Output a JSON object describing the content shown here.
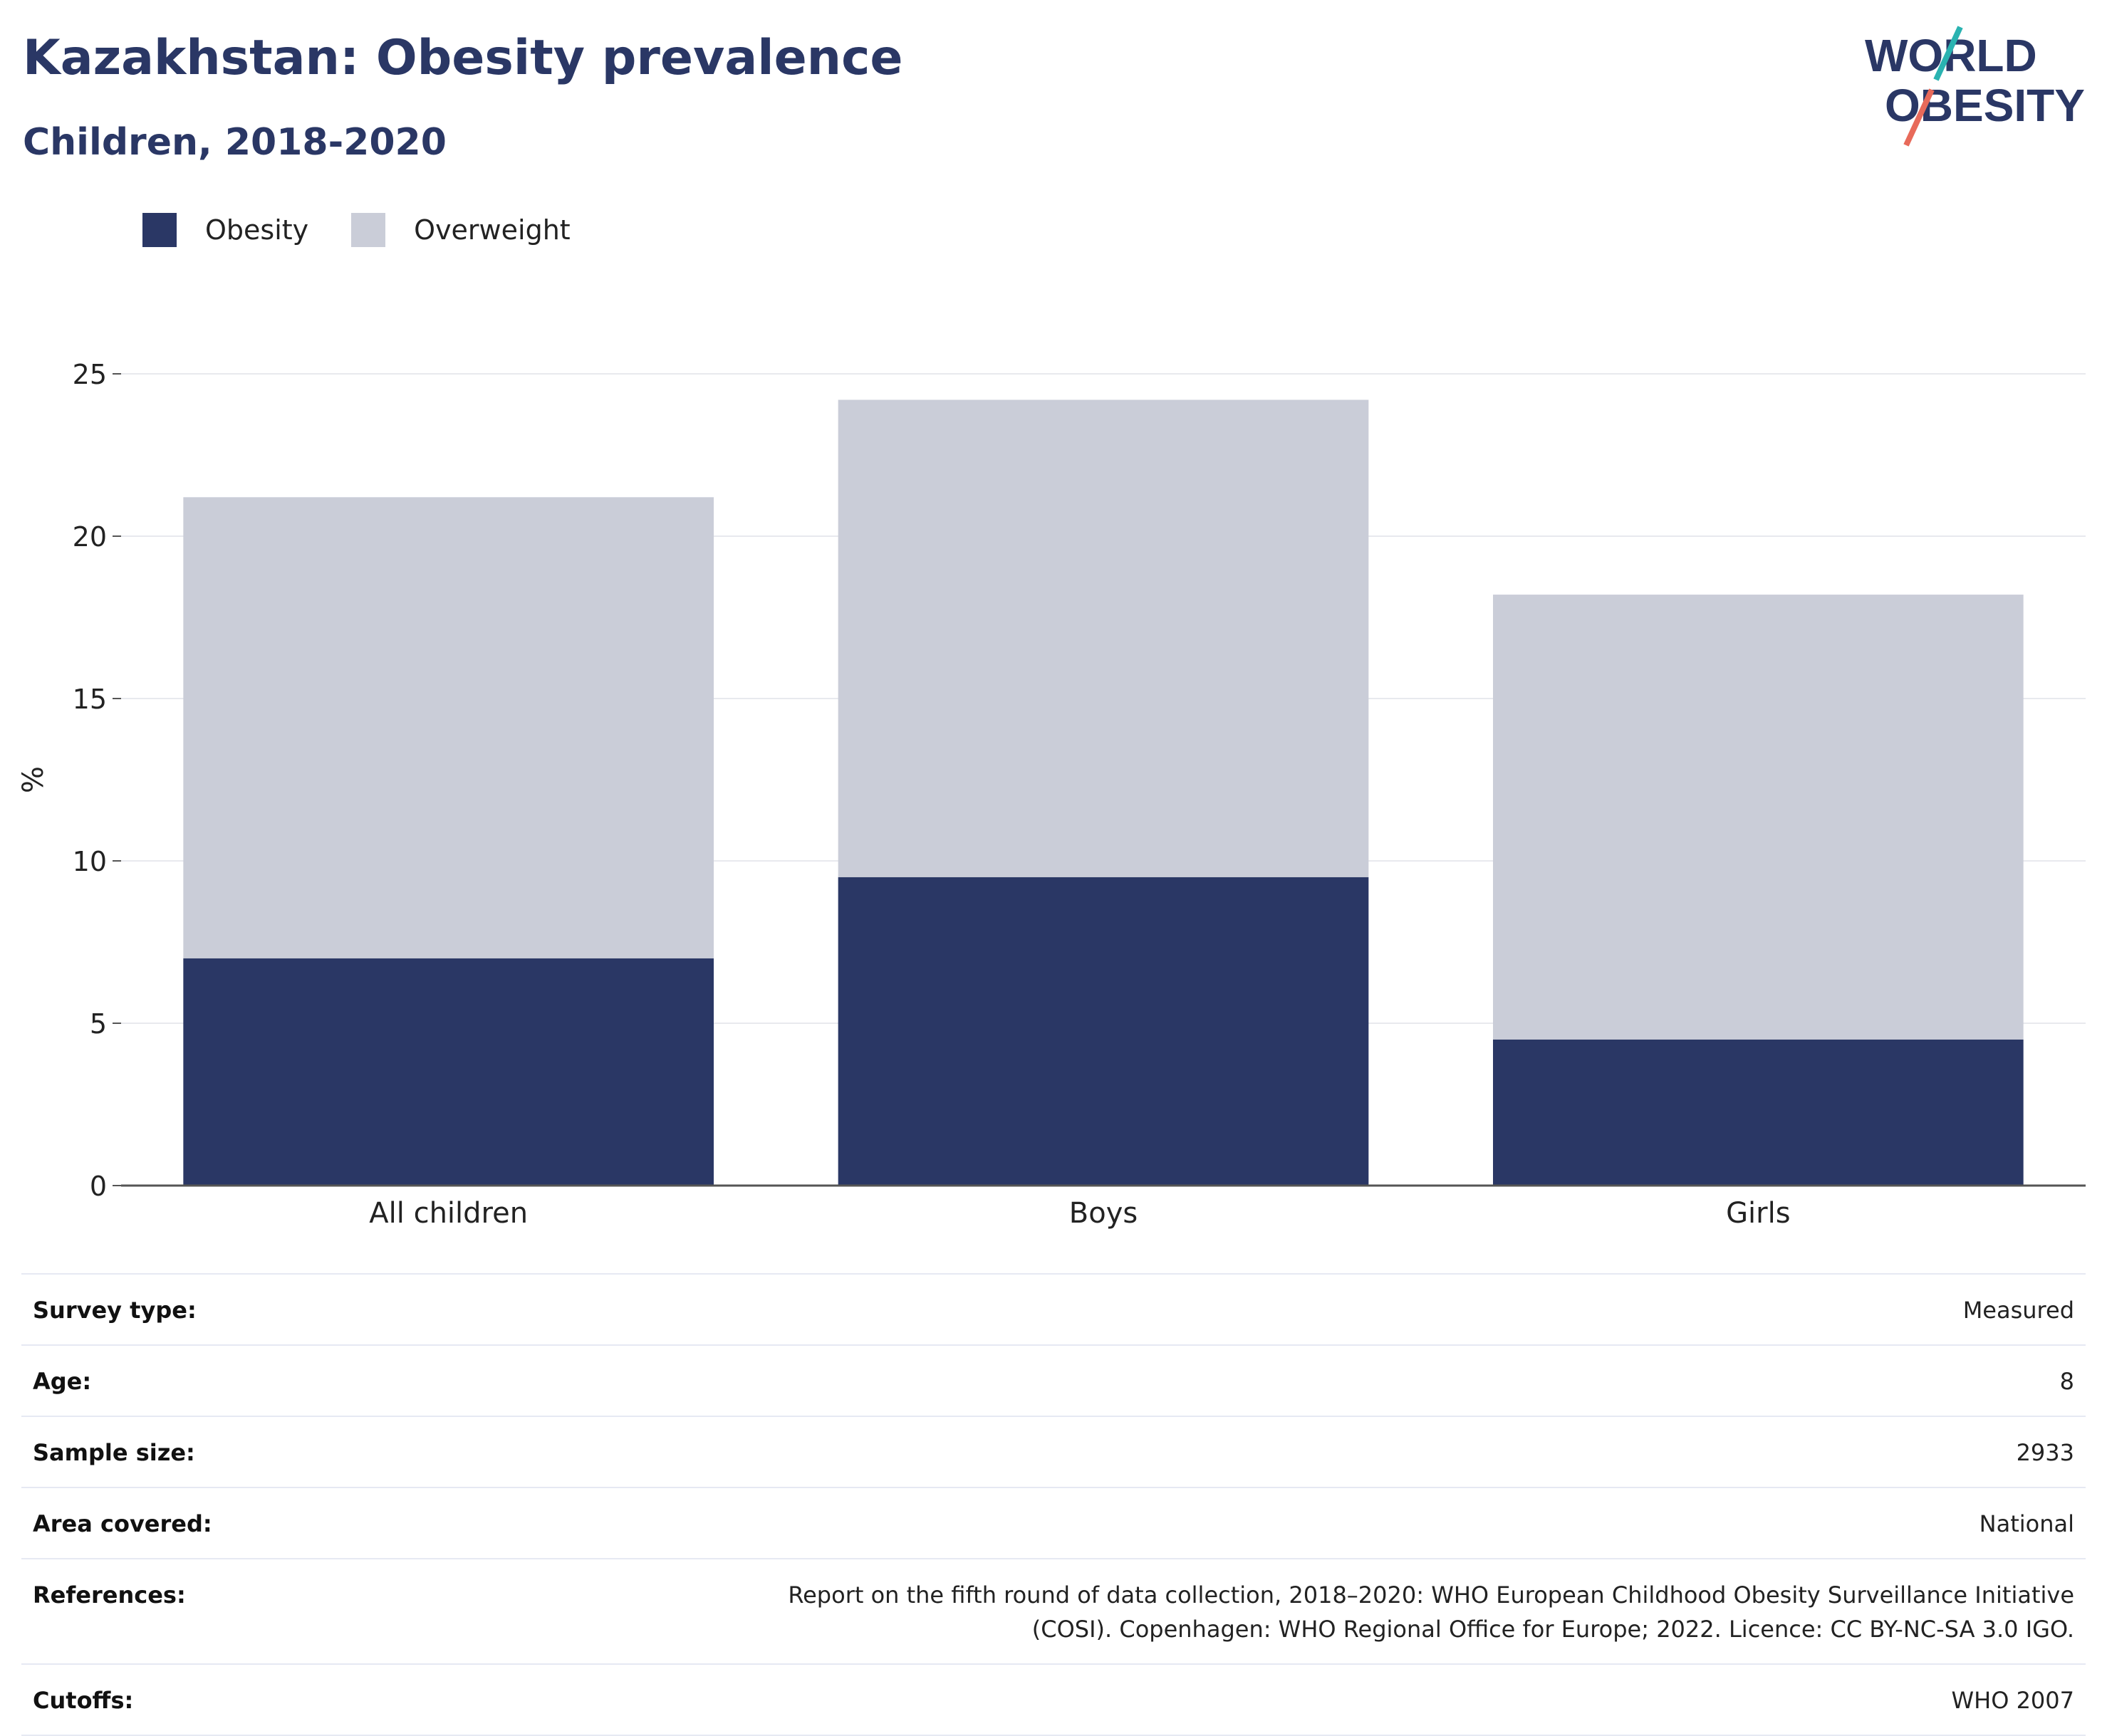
{
  "header": {
    "title": "Kazakhstan: Obesity prevalence",
    "subtitle": "Children, 2018-2020"
  },
  "logo": {
    "line1": "WORLD",
    "line2": "OBESITY",
    "accent_teal": "#2ab3b1",
    "accent_coral": "#e86a5a",
    "text_color": "#2a3765"
  },
  "legend": {
    "items": [
      {
        "label": "Obesity",
        "color": "#2a3765"
      },
      {
        "label": "Overweight",
        "color": "#cacdd8"
      }
    ]
  },
  "chart_data": {
    "type": "bar",
    "stacked": true,
    "categories": [
      "All children",
      "Boys",
      "Girls"
    ],
    "series": [
      {
        "name": "Obesity",
        "color": "#2a3765",
        "values": [
          7.0,
          9.5,
          4.5
        ]
      },
      {
        "name": "Overweight",
        "color": "#cacdd8",
        "values": [
          14.2,
          14.7,
          13.7
        ]
      }
    ],
    "ylabel": "%",
    "ylim": [
      0,
      25
    ],
    "yticks": [
      0,
      5,
      10,
      15,
      20,
      25
    ],
    "grid": true,
    "legend_position": "top-left"
  },
  "info": {
    "rows": [
      {
        "label": "Survey type:",
        "value": "Measured"
      },
      {
        "label": "Age:",
        "value": "8"
      },
      {
        "label": "Sample size:",
        "value": "2933"
      },
      {
        "label": "Area covered:",
        "value": "National"
      },
      {
        "label": "References:",
        "value": "Report on the fifth round of data collection, 2018–2020: WHO European Childhood Obesity Surveillance Initiative (COSI). Copenhagen: WHO Regional Office for Europe; 2022. Licence: CC BY-NC-SA 3.0 IGO."
      },
      {
        "label": "Cutoffs:",
        "value": "WHO 2007"
      }
    ]
  }
}
